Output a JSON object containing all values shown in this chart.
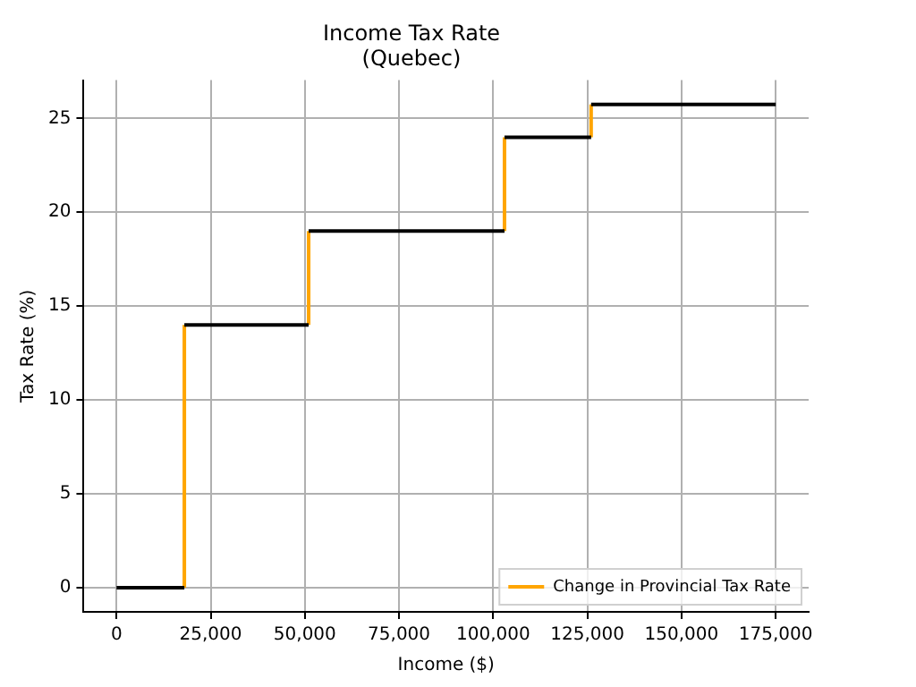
{
  "chart_data": {
    "type": "line",
    "title": "Income Tax Rate",
    "subtitle": "(Quebec)",
    "xlabel": "Income ($)",
    "ylabel": "Tax Rate (%)",
    "series": [
      {
        "color": "#000000",
        "x": [
          0,
          18000
        ],
        "values": [
          0,
          0
        ]
      },
      {
        "color": "#000000",
        "x": [
          18000,
          51000
        ],
        "values": [
          14,
          14
        ]
      },
      {
        "color": "#000000",
        "x": [
          51000,
          103000
        ],
        "values": [
          19,
          19
        ]
      },
      {
        "color": "#000000",
        "x": [
          103000,
          126000
        ],
        "values": [
          24,
          24
        ]
      },
      {
        "color": "#000000",
        "x": [
          126000,
          175000
        ],
        "values": [
          25.75,
          25.75
        ]
      },
      {
        "name": "Change in Provincial Tax Rate",
        "color": "#ffa500",
        "x": [
          18000,
          18000
        ],
        "values": [
          0,
          14
        ]
      },
      {
        "color": "#ffa500",
        "x": [
          51000,
          51000
        ],
        "values": [
          14,
          19
        ]
      },
      {
        "color": "#ffa500",
        "x": [
          103000,
          103000
        ],
        "values": [
          19,
          24
        ]
      },
      {
        "color": "#ffa500",
        "x": [
          126000,
          126000
        ],
        "values": [
          24,
          25.75
        ]
      }
    ],
    "xlim": [
      -8750,
      183750
    ],
    "ylim": [
      -1.29,
      27.04
    ],
    "xticks": [
      {
        "value": 0,
        "label": "0"
      },
      {
        "value": 25000,
        "label": "25,000"
      },
      {
        "value": 50000,
        "label": "50,000"
      },
      {
        "value": 75000,
        "label": "75,000"
      },
      {
        "value": 100000,
        "label": "100,000"
      },
      {
        "value": 125000,
        "label": "125,000"
      },
      {
        "value": 150000,
        "label": "150,000"
      },
      {
        "value": 175000,
        "label": "175,000"
      }
    ],
    "yticks": [
      0,
      5,
      10,
      15,
      20,
      25
    ],
    "grid": true,
    "legend": "bottom right",
    "marker": "none",
    "line_style": "solid"
  }
}
